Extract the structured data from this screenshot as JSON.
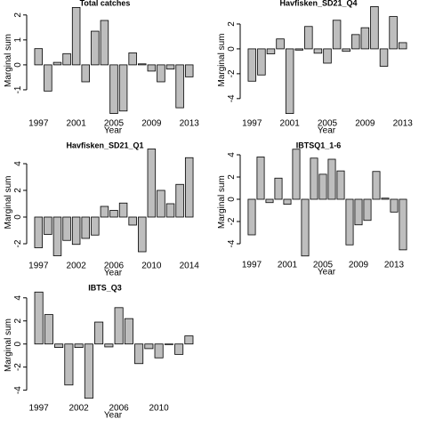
{
  "chart_data": [
    {
      "type": "bar",
      "title": "Total catches",
      "xlabel": "Year",
      "ylabel": "Marginal sum",
      "color": "#bebebe",
      "categories": [
        "1997",
        null,
        null,
        null,
        "2001",
        null,
        null,
        null,
        "2005",
        null,
        null,
        null,
        "2009",
        null,
        null,
        null,
        "2013"
      ],
      "values": [
        0.65,
        -1.05,
        0.1,
        0.45,
        2.3,
        -0.68,
        1.35,
        1.78,
        -1.95,
        -1.85,
        0.48,
        0.04,
        -0.25,
        -0.68,
        -0.17,
        -1.72,
        -0.48
      ],
      "ylim": [
        -2,
        2.35
      ],
      "yticks": [
        -1,
        0,
        1,
        2
      ]
    },
    {
      "type": "bar",
      "title": "Havfisken_SD21_Q4",
      "xlabel": "Year",
      "ylabel": "Marginal sum",
      "color": "#bebebe",
      "categories": [
        "1997",
        null,
        null,
        null,
        "2001",
        null,
        null,
        null,
        "2005",
        null,
        null,
        null,
        "2009",
        null,
        null,
        null,
        "2013"
      ],
      "values": [
        -2.6,
        -2.1,
        -0.4,
        0.8,
        -5.2,
        -0.1,
        1.8,
        -0.35,
        -1.15,
        2.3,
        -0.2,
        1.15,
        1.7,
        3.4,
        -1.4,
        2.6,
        0.5
      ],
      "ylim": [
        -5.3,
        3.5
      ],
      "yticks": [
        -4,
        -2,
        0,
        2
      ]
    },
    {
      "type": "bar",
      "title": "Havfisken_SD21_Q1",
      "xlabel": "Year",
      "ylabel": "Marginal sum",
      "color": "#bebebe",
      "categories": [
        "1997",
        null,
        null,
        null,
        "2002",
        null,
        null,
        null,
        "2006",
        null,
        null,
        null,
        "2010",
        null,
        null,
        null,
        "2014"
      ],
      "values": [
        -2.3,
        -1.3,
        -2.9,
        -1.75,
        -2.05,
        -1.6,
        -1.35,
        0.8,
        0.5,
        1.05,
        -0.6,
        -2.6,
        5.1,
        2.0,
        1.0,
        2.45,
        4.45
      ],
      "ylim": [
        -3,
        5.2
      ],
      "yticks": [
        -2,
        0,
        2,
        4
      ]
    },
    {
      "type": "bar",
      "title": "IBTSQ1_1-6",
      "xlabel": "Year",
      "ylabel": "Marginal sum",
      "color": "#bebebe",
      "categories": [
        "1997",
        null,
        null,
        null,
        "2001",
        null,
        null,
        null,
        "2005",
        null,
        null,
        null,
        "2009",
        null,
        null,
        null,
        "2013",
        null
      ],
      "values": [
        -3.2,
        3.8,
        -0.3,
        1.9,
        -0.45,
        4.5,
        -5.1,
        3.7,
        2.25,
        3.6,
        2.55,
        -4.1,
        -2.3,
        -1.9,
        2.5,
        0.1,
        -1.15,
        -4.55
      ],
      "ylim": [
        -5.1,
        4.6
      ],
      "yticks": [
        -4,
        -2,
        0,
        2,
        4
      ]
    },
    {
      "type": "bar",
      "title": "IBTS_Q3",
      "xlabel": "Year",
      "ylabel": "Marginal sum",
      "color": "#bebebe",
      "categories": [
        "1997",
        null,
        null,
        null,
        "2002",
        null,
        null,
        null,
        "2006",
        null,
        null,
        null,
        "2010",
        null,
        null,
        null
      ],
      "values": [
        4.5,
        2.55,
        -0.3,
        -3.55,
        -0.3,
        -4.7,
        1.9,
        -0.25,
        3.15,
        2.2,
        -1.7,
        -0.4,
        -1.2,
        -0.05,
        -0.9,
        0.7
      ],
      "ylim": [
        -4.8,
        4.6
      ],
      "yticks": [
        -4,
        -2,
        0,
        2,
        4
      ]
    }
  ]
}
